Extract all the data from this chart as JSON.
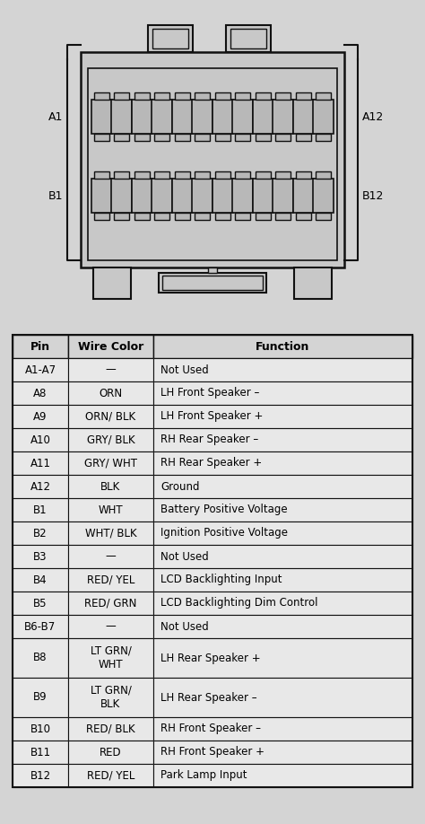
{
  "bg_color": "#d4d4d4",
  "table_bg": "#e8e8e8",
  "border_color": "#111111",
  "rows": [
    [
      "A1-A7",
      "—",
      "Not Used"
    ],
    [
      "A8",
      "ORN",
      "LH Front Speaker –"
    ],
    [
      "A9",
      "ORN/ BLK",
      "LH Front Speaker +"
    ],
    [
      "A10",
      "GRY/ BLK",
      "RH Rear Speaker –"
    ],
    [
      "A11",
      "GRY/ WHT",
      "RH Rear Speaker +"
    ],
    [
      "A12",
      "BLK",
      "Ground"
    ],
    [
      "B1",
      "WHT",
      "Battery Positive Voltage"
    ],
    [
      "B2",
      "WHT/ BLK",
      "Ignition Positive Voltage"
    ],
    [
      "B3",
      "—",
      "Not Used"
    ],
    [
      "B4",
      "RED/ YEL",
      "LCD Backlighting Input"
    ],
    [
      "B5",
      "RED/ GRN",
      "LCD Backlighting Dim Control"
    ],
    [
      "B6-B7",
      "—",
      "Not Used"
    ],
    [
      "B8",
      "LT GRN/\nWHT",
      "LH Rear Speaker +"
    ],
    [
      "B9",
      "LT GRN/\nBLK",
      "LH Rear Speaker –"
    ],
    [
      "B10",
      "RED/ BLK",
      "RH Front Speaker –"
    ],
    [
      "B11",
      "RED",
      "RH Front Speaker +"
    ],
    [
      "B12",
      "RED/ YEL",
      "Park Lamp Input"
    ]
  ],
  "tall_rows": [
    12,
    13
  ],
  "header": [
    "Pin",
    "Wire Color",
    "Function"
  ],
  "label_A1": "A1",
  "label_B1": "B1",
  "label_A12": "A12",
  "label_B12": "B12"
}
